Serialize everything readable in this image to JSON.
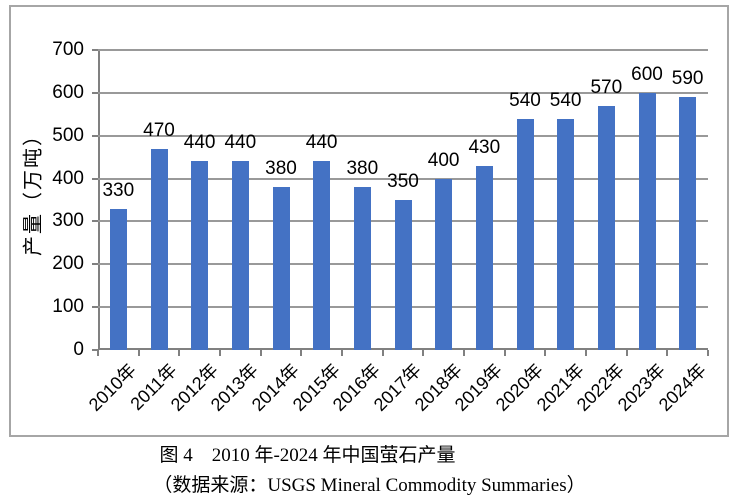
{
  "chart_data": {
    "type": "bar",
    "categories": [
      "2010年",
      "2011年",
      "2012年",
      "2013年",
      "2014年",
      "2015年",
      "2016年",
      "2017年",
      "2018年",
      "2019年",
      "2020年",
      "2021年",
      "2022年",
      "2023年",
      "2024年"
    ],
    "values": [
      330,
      470,
      440,
      440,
      380,
      440,
      380,
      350,
      400,
      430,
      540,
      540,
      570,
      600,
      590
    ],
    "title": "图 4　2010 年-2024 年中国萤石产量",
    "xlabel": "",
    "ylabel": "产量（万吨）",
    "ylim": [
      0,
      700
    ],
    "yticks": [
      0,
      100,
      200,
      300,
      400,
      500,
      600,
      700
    ],
    "grid": true,
    "legend": "none",
    "data_labels": "outside-end",
    "bar_color": "#4472C4",
    "gridline_color": "#999999",
    "axis_color": "#808080",
    "frame_border_color": "#a6a6a6",
    "text_color": "#000000"
  },
  "caption": {
    "line1": "图 4　2010 年-2024 年中国萤石产量",
    "line2": "（数据来源：USGS Mineral Commodity Summaries）"
  }
}
